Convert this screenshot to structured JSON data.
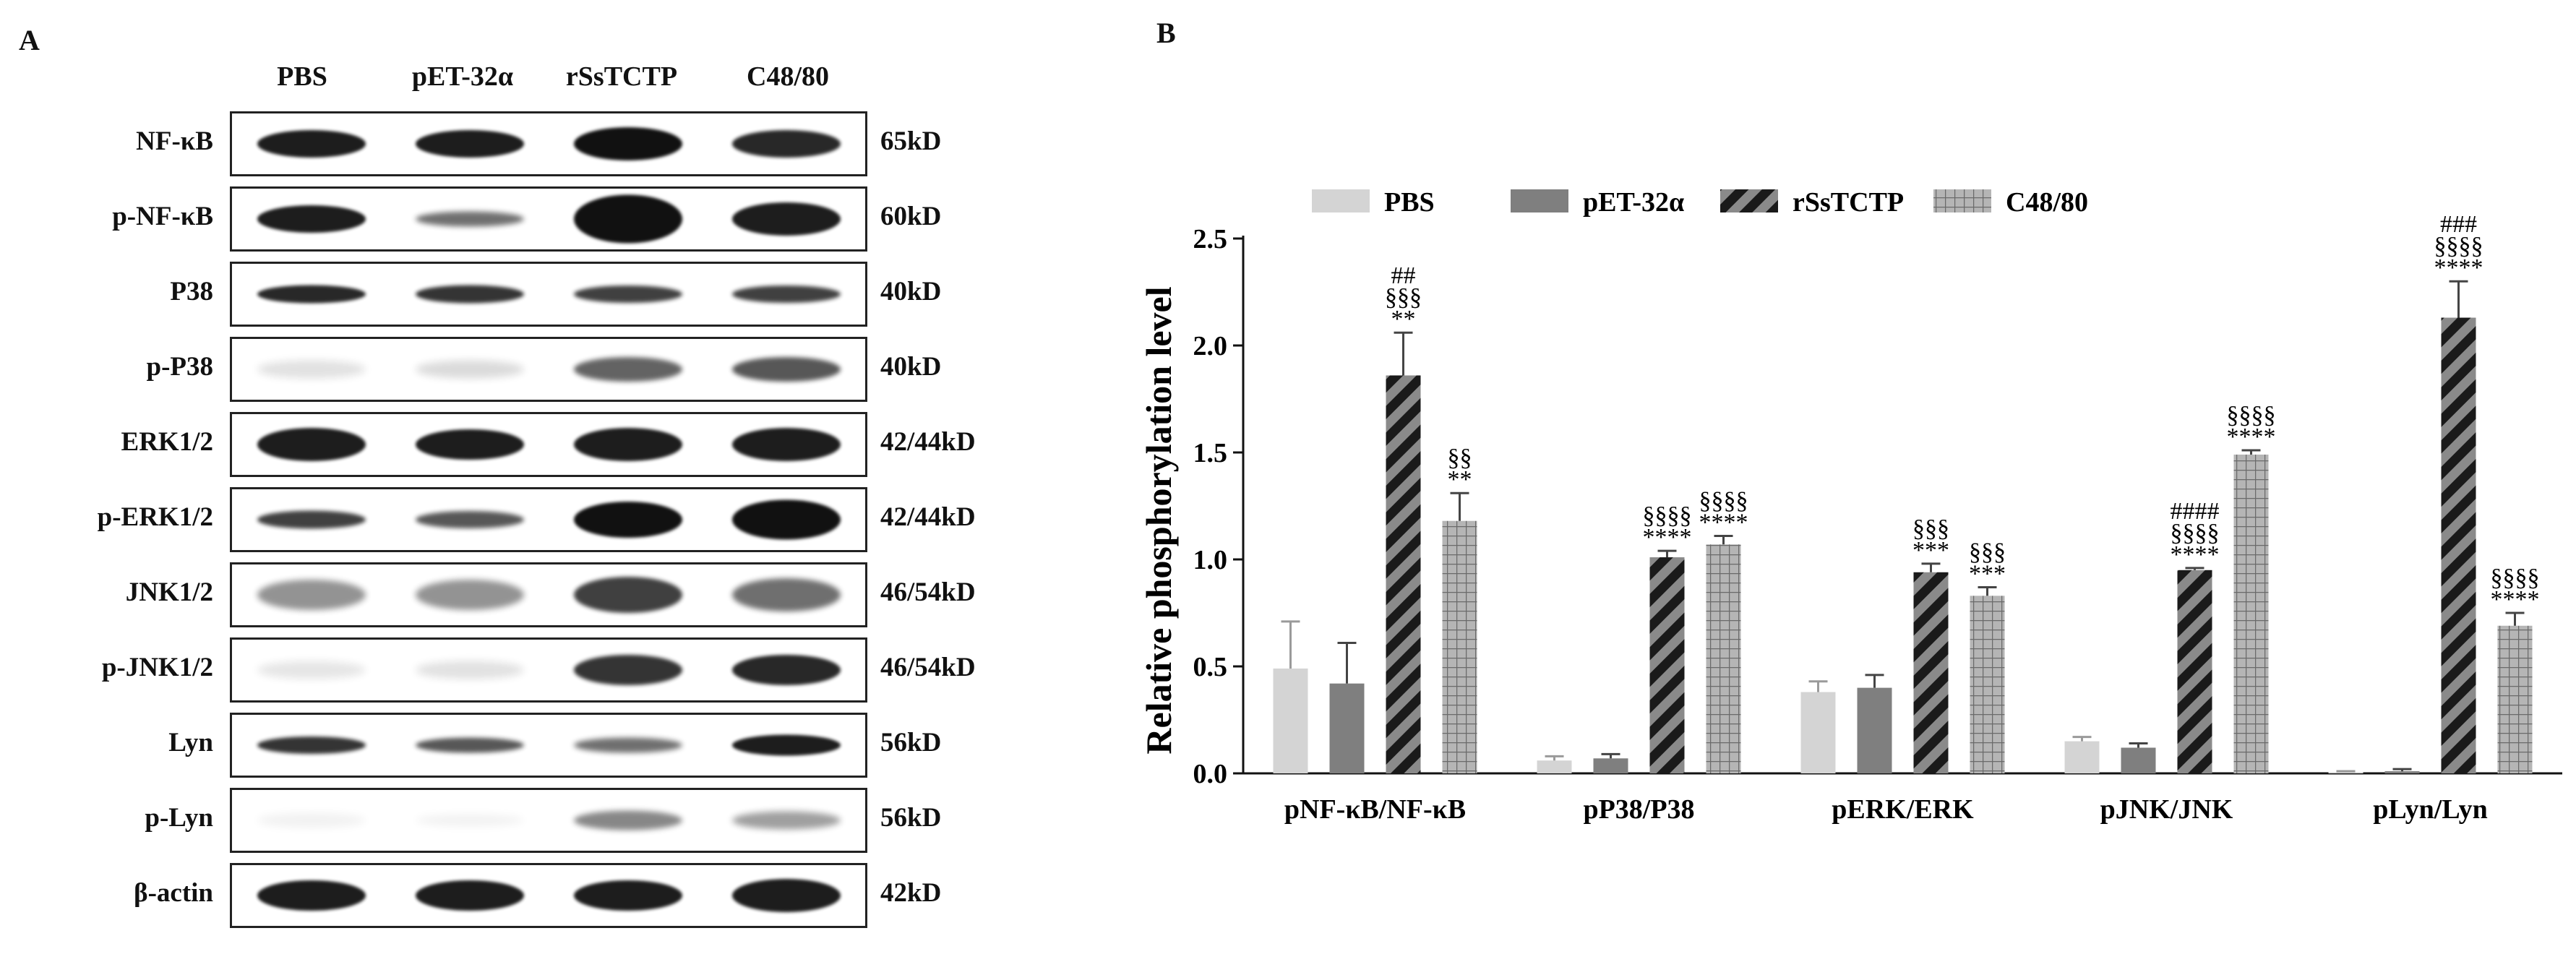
{
  "panels": {
    "a_letter": "A",
    "b_letter": "B"
  },
  "blot": {
    "lanes": [
      "PBS",
      "pET-32α",
      "rSsTCTP",
      "C48/80"
    ],
    "rows": [
      {
        "label": "NF-κB",
        "mw": "65kD",
        "intensity": [
          0.95,
          0.95,
          1.0,
          0.9
        ],
        "thickness": [
          0.45,
          0.45,
          0.55,
          0.45
        ]
      },
      {
        "label": "p-NF-κB",
        "mw": "60kD",
        "intensity": [
          0.95,
          0.6,
          1.0,
          0.95
        ],
        "thickness": [
          0.45,
          0.25,
          0.8,
          0.55
        ]
      },
      {
        "label": "P38",
        "mw": "40kD",
        "intensity": [
          0.9,
          0.85,
          0.8,
          0.8
        ],
        "thickness": [
          0.3,
          0.3,
          0.28,
          0.28
        ]
      },
      {
        "label": "p-P38",
        "mw": "40kD",
        "intensity": [
          0.12,
          0.15,
          0.65,
          0.7
        ],
        "thickness": [
          0.3,
          0.3,
          0.4,
          0.4
        ]
      },
      {
        "label": "ERK1/2",
        "mw": "42/44kD",
        "intensity": [
          0.95,
          0.95,
          0.95,
          0.95
        ],
        "thickness": [
          0.55,
          0.5,
          0.55,
          0.55
        ]
      },
      {
        "label": "p-ERK1/2",
        "mw": "42/44kD",
        "intensity": [
          0.8,
          0.7,
          1.0,
          1.0
        ],
        "thickness": [
          0.3,
          0.28,
          0.6,
          0.65
        ]
      },
      {
        "label": "JNK1/2",
        "mw": "46/54kD",
        "intensity": [
          0.45,
          0.45,
          0.8,
          0.6
        ],
        "thickness": [
          0.5,
          0.5,
          0.6,
          0.55
        ]
      },
      {
        "label": "p-JNK1/2",
        "mw": "46/54kD",
        "intensity": [
          0.1,
          0.12,
          0.85,
          0.9
        ],
        "thickness": [
          0.3,
          0.3,
          0.5,
          0.5
        ]
      },
      {
        "label": "Lyn",
        "mw": "56kD",
        "intensity": [
          0.85,
          0.7,
          0.6,
          0.95
        ],
        "thickness": [
          0.28,
          0.25,
          0.25,
          0.35
        ]
      },
      {
        "label": "p-Lyn",
        "mw": "56kD",
        "intensity": [
          0.05,
          0.05,
          0.5,
          0.4
        ],
        "thickness": [
          0.25,
          0.2,
          0.32,
          0.3
        ]
      },
      {
        "label": "β-actin",
        "mw": "42kD",
        "intensity": [
          0.95,
          0.95,
          0.95,
          0.95
        ],
        "thickness": [
          0.5,
          0.5,
          0.5,
          0.55
        ]
      }
    ]
  },
  "chart_data": {
    "type": "bar",
    "ylabel": "Relative phosphorylation level",
    "ylim": [
      0,
      2.5
    ],
    "yticks": [
      "0.0",
      "0.5",
      "1.0",
      "1.5",
      "2.0",
      "2.5"
    ],
    "categories": [
      "pNF-κB/NF-κB",
      "pP38/P38",
      "pERK/ERK",
      "pJNK/JNK",
      "pLyn/Lyn"
    ],
    "legend_position": "top",
    "series": [
      {
        "name": "PBS",
        "color": "#d4d4d4",
        "pattern": "solid-light",
        "values": [
          0.49,
          0.06,
          0.38,
          0.15,
          0.005
        ],
        "errors": [
          0.22,
          0.02,
          0.05,
          0.02,
          0.005
        ],
        "annotations": [
          "",
          "",
          "",
          "",
          ""
        ]
      },
      {
        "name": "pET-32α",
        "color": "#7f7f7f",
        "pattern": "solid-dark",
        "values": [
          0.42,
          0.07,
          0.4,
          0.12,
          0.01
        ],
        "errors": [
          0.19,
          0.02,
          0.06,
          0.02,
          0.01
        ],
        "annotations": [
          "",
          "",
          "",
          "",
          ""
        ]
      },
      {
        "name": "rSsTCTP",
        "color": "#555555",
        "pattern": "diagonal",
        "values": [
          1.86,
          1.01,
          0.94,
          0.95,
          2.13
        ],
        "errors": [
          0.2,
          0.03,
          0.04,
          0.01,
          0.17
        ],
        "annotations": [
          [
            "##",
            "§§§",
            "**"
          ],
          [
            "§§§§",
            "****"
          ],
          [
            "§§§",
            "***"
          ],
          [
            "####",
            "§§§§",
            "****"
          ],
          [
            "###",
            "§§§§",
            "****"
          ]
        ]
      },
      {
        "name": "C48/80",
        "color": "#9a9a9a",
        "pattern": "grid",
        "values": [
          1.18,
          1.07,
          0.83,
          1.49,
          0.69
        ],
        "errors": [
          0.13,
          0.04,
          0.04,
          0.02,
          0.06
        ],
        "annotations": [
          [
            "§§",
            "**"
          ],
          [
            "§§§§",
            "****"
          ],
          [
            "§§§",
            "***"
          ],
          [
            "§§§§",
            "****"
          ],
          [
            "§§§§",
            "****"
          ]
        ]
      }
    ]
  }
}
